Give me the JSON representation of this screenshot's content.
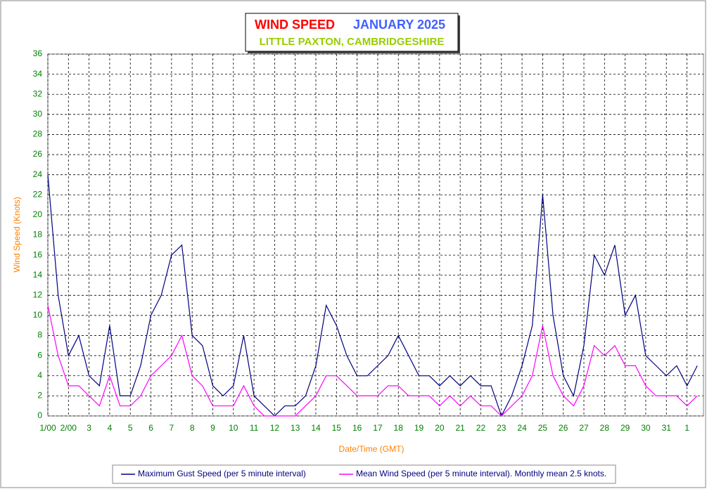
{
  "chart_data": {
    "type": "line",
    "title": "WIND SPEED",
    "title_month": "JANUARY 2025",
    "subtitle": "LITTLE PAXTON, CAMBRIDGESHIRE",
    "y_label": "Wind Speed (Knots)",
    "x_label": "Date/Time (GMT)",
    "x": [
      0,
      0.5,
      1,
      1.5,
      2,
      2.5,
      3,
      3.5,
      4,
      4.5,
      5,
      5.5,
      6,
      6.5,
      7,
      7.5,
      8,
      8.5,
      9,
      9.5,
      10,
      10.5,
      11,
      11.5,
      12,
      12.5,
      13,
      13.5,
      14,
      14.5,
      15,
      15.5,
      16,
      16.5,
      17,
      17.5,
      18,
      18.5,
      19,
      19.5,
      20,
      20.5,
      21,
      21.5,
      22,
      22.5,
      23,
      23.5,
      24,
      24.5,
      25,
      25.5,
      26,
      26.5,
      27,
      27.5,
      28,
      28.5,
      29,
      29.5,
      30,
      30.5,
      31,
      31.5
    ],
    "series": [
      {
        "name": "Maximum Gust Speed (per 5 minute interval)",
        "color": "#000080",
        "values": [
          24,
          12,
          6,
          8,
          4,
          3,
          9,
          2,
          2,
          5,
          10,
          12,
          16,
          17,
          8,
          7,
          3,
          2,
          3,
          8,
          2,
          1,
          0,
          1,
          1,
          2,
          5,
          11,
          9,
          6,
          4,
          4,
          5,
          6,
          8,
          6,
          4,
          4,
          3,
          4,
          3,
          4,
          3,
          3,
          0,
          2,
          5,
          9,
          22,
          10,
          4,
          2,
          7,
          16,
          14,
          17,
          10,
          12,
          6,
          5,
          4,
          5,
          3,
          5
        ]
      },
      {
        "name": "Mean Wind Speed (per 5 minute interval). Monthly mean 2.5 knots.",
        "color": "#ff00ff",
        "values": [
          11,
          6,
          3,
          3,
          2,
          1,
          4,
          1,
          1,
          2,
          4,
          5,
          6,
          8,
          4,
          3,
          1,
          1,
          1,
          3,
          1,
          0,
          0,
          0,
          0,
          1,
          2,
          4,
          4,
          3,
          2,
          2,
          2,
          3,
          3,
          2,
          2,
          2,
          1,
          2,
          1,
          2,
          1,
          1,
          0,
          1,
          2,
          4,
          9,
          4,
          2,
          1,
          3,
          7,
          6,
          7,
          5,
          5,
          3,
          2,
          2,
          2,
          1,
          2
        ]
      }
    ],
    "xlim": [
      0,
      31.8
    ],
    "xticks": [
      {
        "value": 0,
        "label": "1/00"
      },
      {
        "value": 1,
        "label": "2/00"
      },
      {
        "value": 2,
        "label": "3"
      },
      {
        "value": 3,
        "label": "4"
      },
      {
        "value": 4,
        "label": "5"
      },
      {
        "value": 5,
        "label": "6"
      },
      {
        "value": 6,
        "label": "7"
      },
      {
        "value": 7,
        "label": "8"
      },
      {
        "value": 8,
        "label": "9"
      },
      {
        "value": 9,
        "label": "10"
      },
      {
        "value": 10,
        "label": "11"
      },
      {
        "value": 11,
        "label": "12"
      },
      {
        "value": 12,
        "label": "13"
      },
      {
        "value": 13,
        "label": "14"
      },
      {
        "value": 14,
        "label": "15"
      },
      {
        "value": 15,
        "label": "16"
      },
      {
        "value": 16,
        "label": "17"
      },
      {
        "value": 17,
        "label": "18"
      },
      {
        "value": 18,
        "label": "19"
      },
      {
        "value": 19,
        "label": "20"
      },
      {
        "value": 20,
        "label": "21"
      },
      {
        "value": 21,
        "label": "22"
      },
      {
        "value": 22,
        "label": "23"
      },
      {
        "value": 23,
        "label": "24"
      },
      {
        "value": 24,
        "label": "25"
      },
      {
        "value": 25,
        "label": "26"
      },
      {
        "value": 26,
        "label": "27"
      },
      {
        "value": 27,
        "label": "28"
      },
      {
        "value": 28,
        "label": "29"
      },
      {
        "value": 29,
        "label": "30"
      },
      {
        "value": 30,
        "label": "31"
      },
      {
        "value": 31,
        "label": "1"
      }
    ],
    "ylim": [
      0,
      36
    ],
    "yticks": [
      0,
      2,
      4,
      6,
      8,
      10,
      12,
      14,
      16,
      18,
      20,
      22,
      24,
      26,
      28,
      30,
      32,
      34,
      36
    ],
    "grid": true
  }
}
